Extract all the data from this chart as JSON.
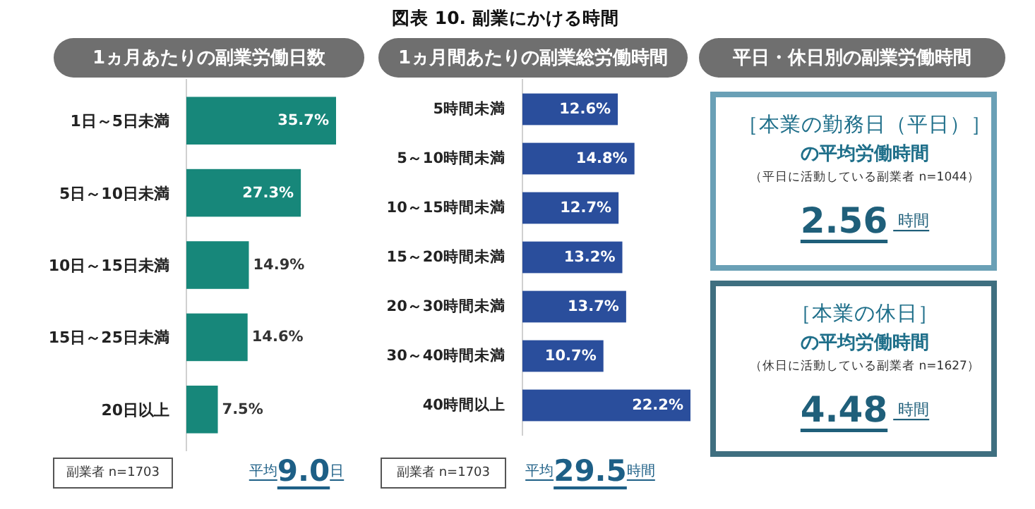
{
  "chart_data": [
    {
      "type": "bar",
      "orientation": "horizontal",
      "title": "1ヵ月あたりの副業労働日数",
      "categories": [
        "1日～5日未満",
        "5日～10日未満",
        "10日～15日未満",
        "15日～25日未満",
        "20日以上"
      ],
      "values": [
        35.7,
        27.3,
        14.9,
        14.6,
        7.5
      ],
      "value_labels": [
        "35.7%",
        "27.3%",
        "14.9%",
        "14.6%",
        "7.5%"
      ],
      "color": "#17877a",
      "annotations": [
        "副業者 n=1703",
        "平均**9.0**日"
      ]
    },
    {
      "type": "bar",
      "orientation": "horizontal",
      "title": "1ヵ月間あたりの副業総労働時間",
      "categories": [
        "5時間未満",
        "5～10時間未満",
        "10～15時間未満",
        "15～20時間未満",
        "20～30時間未満",
        "30～40時間未満",
        "40時間以上"
      ],
      "values": [
        12.6,
        14.8,
        12.7,
        13.2,
        13.7,
        10.7,
        22.2
      ],
      "value_labels": [
        "12.6%",
        "14.8%",
        "12.7%",
        "13.2%",
        "13.7%",
        "10.7%",
        "22.2%"
      ],
      "color": "#2a4e9c",
      "annotations": [
        "副業者 n=1703",
        "平均**29.5**時間",
        "図表 10. 副業にかける時間"
      ]
    },
    {
      "type": "other",
      "title": "平日・休日別の副業労働時間",
      "annotations": [
        "［本業の勤務日（平日）］",
        "の平均労働時間",
        "（平日に活動している副業者 n=1044）",
        "**2.56** 時間",
        "［本業の休日］",
        "の平均労働時間",
        "（休日に活動している副業者 n=1627）",
        "**4.48** 時間"
      ]
    }
  ]
}
